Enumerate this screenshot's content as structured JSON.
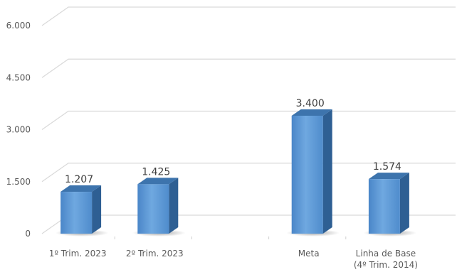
{
  "chart_data": {
    "type": "bar",
    "style": "3d-column",
    "categories": [
      "1º Trim. 2023",
      "2º Trim. 2023",
      "",
      "Meta",
      "Linha de Base (4º Trim. 2014)"
    ],
    "category_lines": [
      [
        "1º Trim. 2023"
      ],
      [
        "2º Trim. 2023"
      ],
      [],
      [
        "Meta"
      ],
      [
        "Linha de Base",
        "(4º Trim. 2014)"
      ]
    ],
    "values": [
      1207,
      1425,
      null,
      3400,
      1574
    ],
    "data_labels": [
      "1.207",
      "1.425",
      "",
      "3.400",
      "1.574"
    ],
    "ylim": [
      0,
      6000
    ],
    "yticks": [
      0,
      1500,
      3000,
      4500,
      6000
    ],
    "ytick_labels": [
      "0",
      "1.500",
      "3.000",
      "4.500",
      "6.000"
    ],
    "grid": true,
    "colors": {
      "bar_front": "#5b9bd5",
      "bar_side": "#2e5f93",
      "bar_top": "#3d74ad",
      "grid": "#d9d9d9",
      "axis_text": "#595959"
    }
  }
}
